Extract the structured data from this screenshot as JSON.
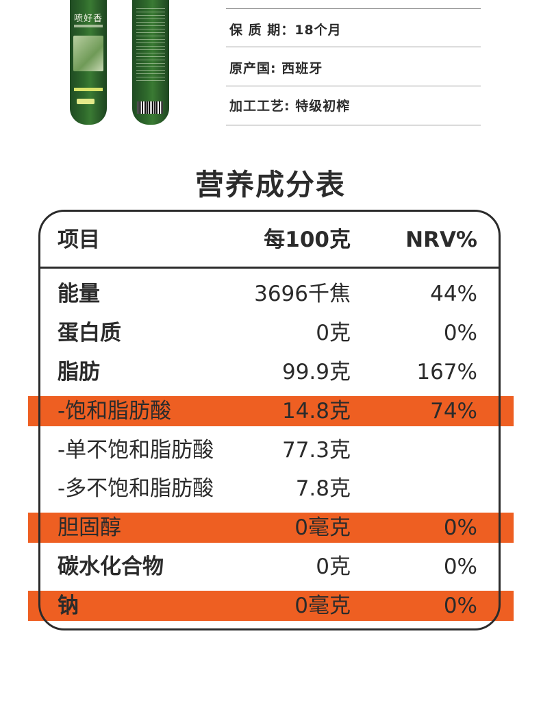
{
  "product": {
    "brand_text": "喷好香",
    "info": [
      "保 质 期：18个月",
      "原产国: 西班牙",
      "加工工艺: 特级初榨"
    ]
  },
  "nutrition": {
    "title": "营养成分表",
    "headers": [
      "项目",
      "每100克",
      "NRV%"
    ],
    "rows": [
      {
        "name": "能量",
        "per100": "3696千焦",
        "nrv": "44%"
      },
      {
        "name": "蛋白质",
        "per100": "0克",
        "nrv": "0%"
      },
      {
        "name": "脂肪",
        "per100": "99.9克",
        "nrv": "167%"
      },
      {
        "name": "-饱和脂肪酸",
        "per100": "14.8克",
        "nrv": "74%"
      },
      {
        "name": "-单不饱和脂肪酸",
        "per100": "77.3克",
        "nrv": ""
      },
      {
        "name": "-多不饱和脂肪酸",
        "per100": "7.8克",
        "nrv": ""
      },
      {
        "name": "胆固醇",
        "per100": "0毫克",
        "nrv": "0%"
      },
      {
        "name": "碳水化合物",
        "per100": "0克",
        "nrv": "0%"
      },
      {
        "name": "钠",
        "per100": "0毫克",
        "nrv": "0%"
      }
    ]
  },
  "colors": {
    "highlight": "#ee5f22",
    "text": "#2b2b2b",
    "bottle": "#2f6a2c"
  }
}
